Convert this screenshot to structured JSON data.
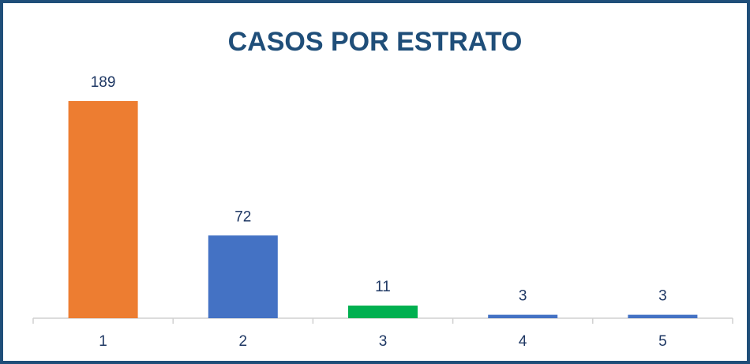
{
  "chart_data": {
    "type": "bar",
    "title": "CASOS POR ESTRATO",
    "categories": [
      "1",
      "2",
      "3",
      "4",
      "5"
    ],
    "values": [
      189,
      72,
      11,
      3,
      3
    ],
    "colors": [
      "#ed7d31",
      "#4472c4",
      "#00b050",
      "#4472c4",
      "#4472c4"
    ]
  }
}
